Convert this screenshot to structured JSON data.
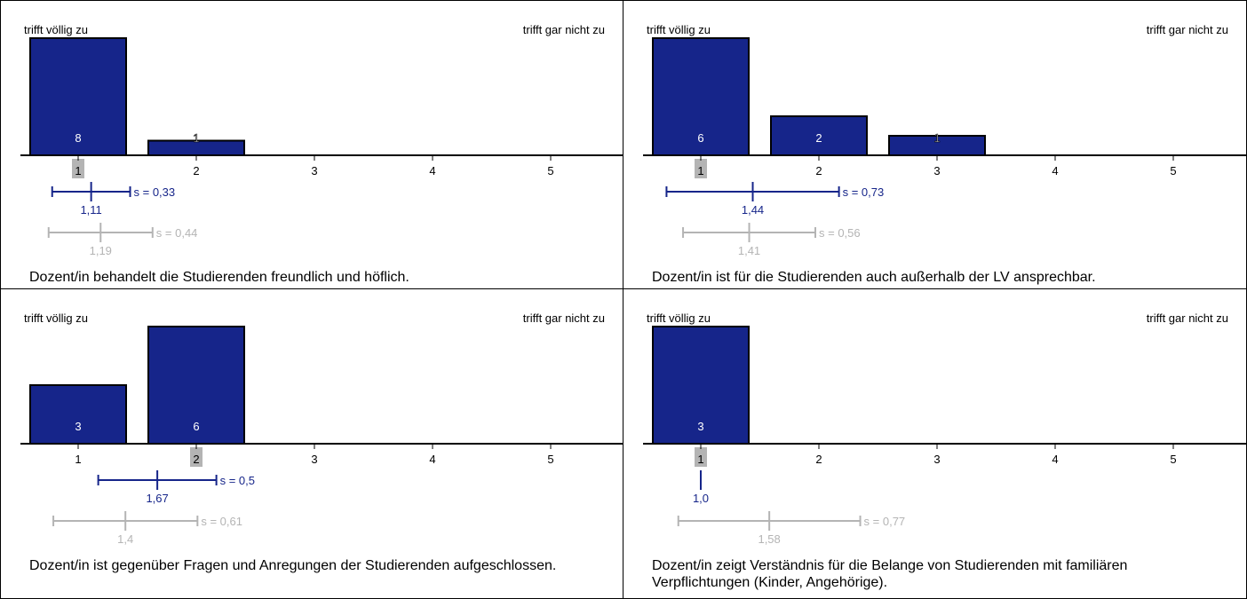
{
  "chart_data": [
    {
      "type": "bar",
      "left_label": "trifft völlig zu",
      "right_label": "trifft gar nicht zu",
      "categories": [
        "1",
        "2",
        "3",
        "4",
        "5"
      ],
      "values": [
        8,
        1,
        0,
        0,
        0
      ],
      "highlight_category": "1",
      "mean": "1,11",
      "mean_value": 1.11,
      "sd": "s = 0,33",
      "sd_value": 0.33,
      "ref_mean": "1,19",
      "ref_mean_value": 1.19,
      "ref_sd": "s = 0,44",
      "ref_sd_value": 0.44,
      "question": "Dozent/in behandelt die Studierenden freundlich und höflich.",
      "bar_color": "#16258a",
      "ref_color": "#b4b4b4"
    },
    {
      "type": "bar",
      "left_label": "trifft völlig zu",
      "right_label": "trifft gar nicht zu",
      "categories": [
        "1",
        "2",
        "3",
        "4",
        "5"
      ],
      "values": [
        6,
        2,
        1,
        0,
        0
      ],
      "highlight_category": "1",
      "mean": "1,44",
      "mean_value": 1.44,
      "sd": "s = 0,73",
      "sd_value": 0.73,
      "ref_mean": "1,41",
      "ref_mean_value": 1.41,
      "ref_sd": "s = 0,56",
      "ref_sd_value": 0.56,
      "question": "Dozent/in ist für die Studierenden auch außerhalb der LV ansprechbar.",
      "bar_color": "#16258a",
      "ref_color": "#b4b4b4"
    },
    {
      "type": "bar",
      "left_label": "trifft völlig zu",
      "right_label": "trifft gar nicht zu",
      "categories": [
        "1",
        "2",
        "3",
        "4",
        "5"
      ],
      "values": [
        3,
        6,
        0,
        0,
        0
      ],
      "highlight_category": "2",
      "mean": "1,67",
      "mean_value": 1.67,
      "sd": "s = 0,5",
      "sd_value": 0.5,
      "ref_mean": "1,4",
      "ref_mean_value": 1.4,
      "ref_sd": "s = 0,61",
      "ref_sd_value": 0.61,
      "question": "Dozent/in ist gegenüber Fragen und Anregungen der Studierenden aufgeschlossen.",
      "bar_color": "#16258a",
      "ref_color": "#b4b4b4"
    },
    {
      "type": "bar",
      "left_label": "trifft völlig zu",
      "right_label": "trifft gar nicht zu",
      "categories": [
        "1",
        "2",
        "3",
        "4",
        "5"
      ],
      "values": [
        3,
        0,
        0,
        0,
        0
      ],
      "highlight_category": "1",
      "mean": "1,0",
      "mean_value": 1.0,
      "sd": "",
      "sd_value": 0,
      "ref_mean": "1,58",
      "ref_mean_value": 1.58,
      "ref_sd": "s = 0,77",
      "ref_sd_value": 0.77,
      "question": "Dozent/in zeigt Verständnis für die Belange von Studierenden mit familiären Verpflichtungen (Kinder, Angehörige).",
      "bar_color": "#16258a",
      "ref_color": "#b4b4b4"
    }
  ]
}
